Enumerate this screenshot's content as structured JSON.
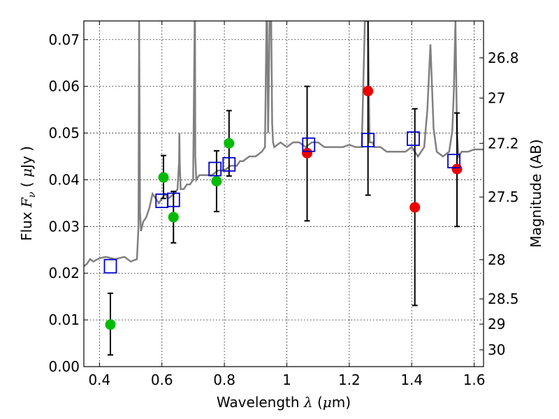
{
  "chart_data": {
    "type": "scatter",
    "title": "",
    "xlabel": {
      "prefix": "Wavelength  ",
      "symbol": "λ",
      "suffix": " (",
      "unit_symbol": "μ",
      "unit_rest": "m)"
    },
    "ylabel": {
      "prefix": "Flux  ",
      "symbol": "F",
      "subscript": "ν",
      "suffix": "  (  ",
      "unit_symbol": "μ",
      "unit_rest": "Jy  )"
    },
    "y2label": "Magnitude (AB)",
    "xlim": [
      0.35,
      1.63
    ],
    "ylim": [
      0.0,
      0.074
    ],
    "grid": true,
    "x_ticks": [
      0.4,
      0.6,
      0.8,
      1.0,
      1.2,
      1.4,
      1.6
    ],
    "x_tick_labels": [
      "0.4",
      "0.6",
      "0.8",
      "1",
      "1.2",
      "1.4",
      "1.6"
    ],
    "y_ticks": [
      0.0,
      0.01,
      0.02,
      0.03,
      0.04,
      0.05,
      0.06,
      0.07
    ],
    "y_tick_labels": [
      "0.00",
      "0.01",
      "0.02",
      "0.03",
      "0.04",
      "0.05",
      "0.06",
      "0.07"
    ],
    "y2_ticks": [
      {
        "label": "26.8",
        "flux": 0.0661
      },
      {
        "label": "27",
        "flux": 0.0575
      },
      {
        "label": "27.2",
        "flux": 0.0478
      },
      {
        "label": "27.5",
        "flux": 0.0363
      },
      {
        "label": "28",
        "flux": 0.0229
      },
      {
        "label": "28.5",
        "flux": 0.0145
      },
      {
        "label": "29",
        "flux": 0.0091
      },
      {
        "label": "30",
        "flux": 0.0036
      }
    ],
    "colors": {
      "model": "#808080",
      "green": "#00bb00",
      "red": "#ee0000",
      "square": "#0000cc",
      "errorbar": "#000000"
    },
    "model_spectrum": {
      "wavelength": [
        0.35,
        0.36,
        0.37,
        0.38,
        0.4,
        0.42,
        0.45,
        0.48,
        0.5,
        0.52,
        0.525,
        0.527,
        0.53,
        0.533,
        0.54,
        0.55,
        0.56,
        0.57,
        0.58,
        0.59,
        0.6,
        0.61,
        0.62,
        0.64,
        0.65,
        0.655,
        0.656,
        0.657,
        0.66,
        0.67,
        0.68,
        0.69,
        0.7,
        0.705,
        0.706,
        0.707,
        0.71,
        0.72,
        0.74,
        0.76,
        0.78,
        0.8,
        0.82,
        0.84,
        0.85,
        0.86,
        0.88,
        0.9,
        0.92,
        0.93,
        0.935,
        0.937,
        0.94,
        0.945,
        0.95,
        0.953,
        0.956,
        0.96,
        0.98,
        1.0,
        1.02,
        1.04,
        1.06,
        1.08,
        1.1,
        1.12,
        1.15,
        1.18,
        1.2,
        1.22,
        1.24,
        1.25,
        1.255,
        1.26,
        1.265,
        1.275,
        1.28,
        1.3,
        1.32,
        1.35,
        1.38,
        1.4,
        1.42,
        1.44,
        1.45,
        1.46,
        1.47,
        1.48,
        1.5,
        1.52,
        1.53,
        1.535,
        1.54,
        1.545,
        1.55,
        1.56,
        1.58,
        1.6,
        1.63
      ],
      "flux": [
        0.0215,
        0.022,
        0.023,
        0.0225,
        0.0232,
        0.0235,
        0.023,
        0.0235,
        0.0225,
        0.023,
        0.03,
        0.074,
        0.033,
        0.029,
        0.031,
        0.032,
        0.034,
        0.037,
        0.036,
        0.035,
        0.036,
        0.037,
        0.036,
        0.037,
        0.038,
        0.044,
        0.05,
        0.044,
        0.038,
        0.038,
        0.039,
        0.039,
        0.04,
        0.074,
        0.074,
        0.045,
        0.04,
        0.041,
        0.041,
        0.041,
        0.042,
        0.042,
        0.043,
        0.043,
        0.044,
        0.044,
        0.045,
        0.045,
        0.046,
        0.047,
        0.074,
        0.074,
        0.05,
        0.074,
        0.074,
        0.052,
        0.048,
        0.047,
        0.048,
        0.047,
        0.048,
        0.048,
        0.047,
        0.048,
        0.048,
        0.047,
        0.047,
        0.047,
        0.0475,
        0.047,
        0.047,
        0.074,
        0.074,
        0.074,
        0.048,
        0.048,
        0.047,
        0.047,
        0.046,
        0.046,
        0.046,
        0.047,
        0.045,
        0.047,
        0.055,
        0.069,
        0.051,
        0.046,
        0.045,
        0.046,
        0.0505,
        0.059,
        0.074,
        0.05,
        0.045,
        0.046,
        0.046,
        0.0465,
        0.0465
      ]
    },
    "series": [
      {
        "marker": "circle",
        "color": "green",
        "points": [
          {
            "x": 0.435,
            "y": 0.009,
            "yerr_low": 0.0065,
            "yerr_high": 0.0067
          },
          {
            "x": 0.605,
            "y": 0.0405,
            "yerr_low": 0.0045,
            "yerr_high": 0.0047
          },
          {
            "x": 0.637,
            "y": 0.032,
            "yerr_low": 0.0055,
            "yerr_high": 0.0055
          },
          {
            "x": 0.775,
            "y": 0.0397,
            "yerr_low": 0.0065,
            "yerr_high": 0.0065
          },
          {
            "x": 0.815,
            "y": 0.0478,
            "yerr_low": 0.007,
            "yerr_high": 0.007
          }
        ]
      },
      {
        "marker": "circle",
        "color": "red",
        "points": [
          {
            "x": 1.065,
            "y": 0.0457,
            "yerr_low": 0.0145,
            "yerr_high": 0.0143
          },
          {
            "x": 1.26,
            "y": 0.059,
            "yerr_low": 0.0223,
            "yerr_high": 0.02
          },
          {
            "x": 1.41,
            "y": 0.0341,
            "yerr_low": 0.021,
            "yerr_high": 0.0211
          },
          {
            "x": 1.545,
            "y": 0.0423,
            "yerr_low": 0.0123,
            "yerr_high": 0.012
          }
        ]
      },
      {
        "marker": "square",
        "color": "square",
        "points": [
          {
            "x": 0.435,
            "y": 0.0215
          },
          {
            "x": 0.6,
            "y": 0.0355
          },
          {
            "x": 0.637,
            "y": 0.0357
          },
          {
            "x": 0.77,
            "y": 0.0423
          },
          {
            "x": 0.815,
            "y": 0.0433
          },
          {
            "x": 1.07,
            "y": 0.0475
          },
          {
            "x": 1.26,
            "y": 0.0485
          },
          {
            "x": 1.405,
            "y": 0.0488
          },
          {
            "x": 1.535,
            "y": 0.044
          }
        ]
      }
    ]
  }
}
